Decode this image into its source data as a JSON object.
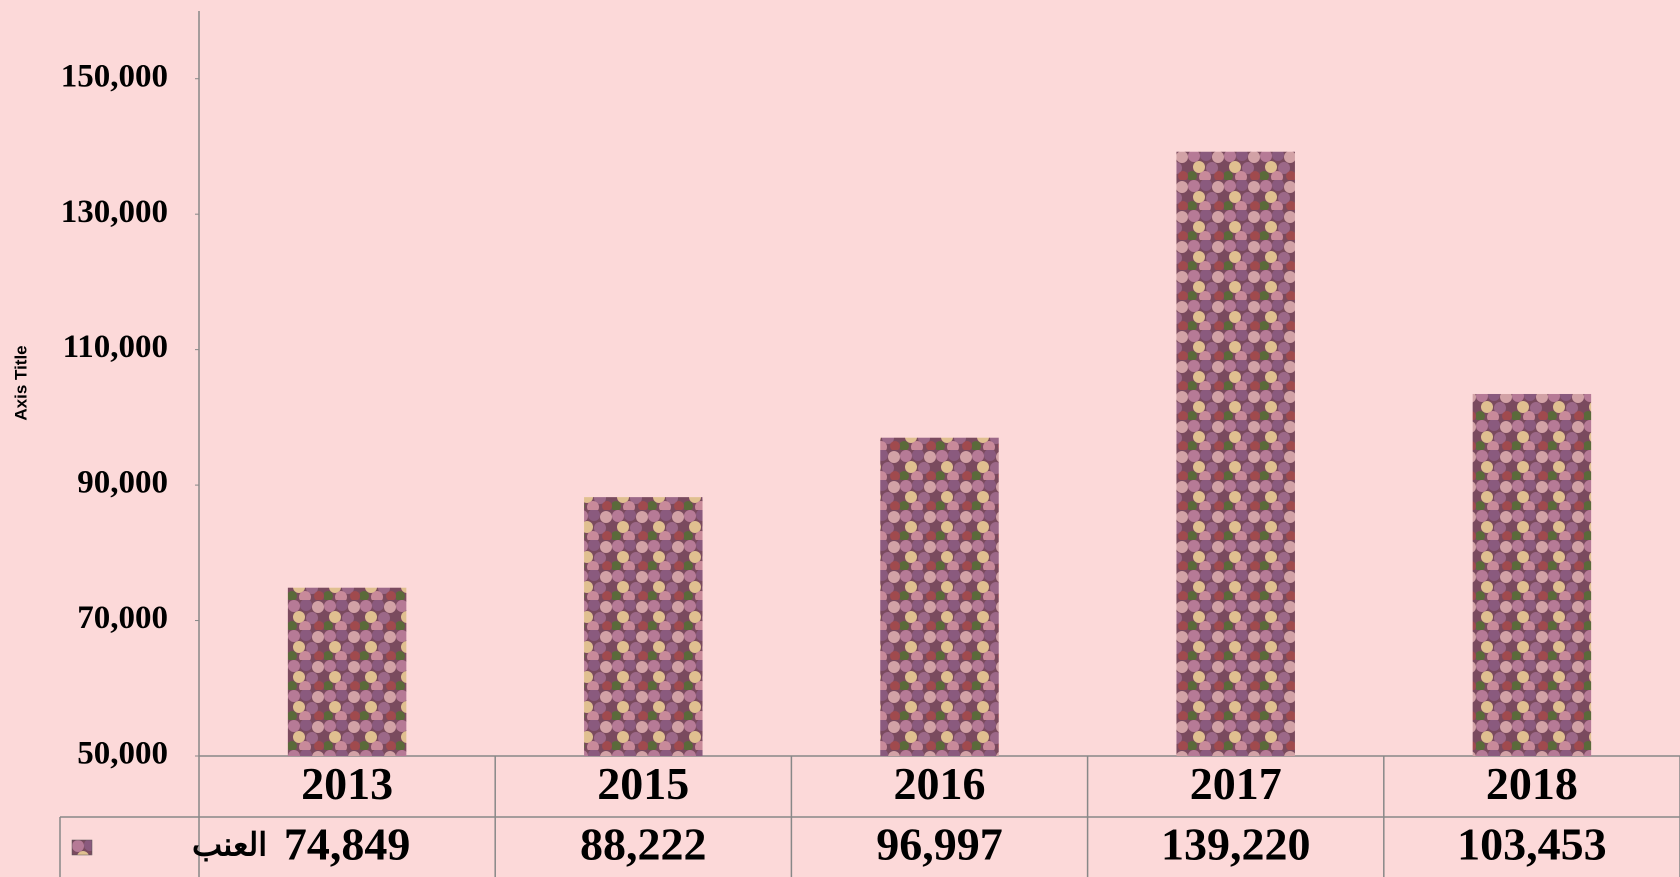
{
  "chart_data": {
    "type": "bar",
    "y_axis_title": "Axis Title",
    "categories": [
      "2013",
      "2015",
      "2016",
      "2017",
      "2018"
    ],
    "series": [
      {
        "name": "العنب",
        "color": "#9a5a7a",
        "values": [
          74849,
          88222,
          96997,
          139220,
          103453
        ],
        "value_labels": [
          "74,849",
          "88,222",
          "96,997",
          "139,220",
          "103,453"
        ]
      }
    ],
    "ylim": [
      50000,
      160000
    ],
    "yticks": [
      {
        "value": 50000,
        "label": "50,000"
      },
      {
        "value": 70000,
        "label": "70,000"
      },
      {
        "value": 90000,
        "label": "90,000"
      },
      {
        "value": 110000,
        "label": "110,000"
      },
      {
        "value": 130000,
        "label": "130,000"
      },
      {
        "value": 150000,
        "label": "150,000"
      }
    ],
    "grid": false
  }
}
